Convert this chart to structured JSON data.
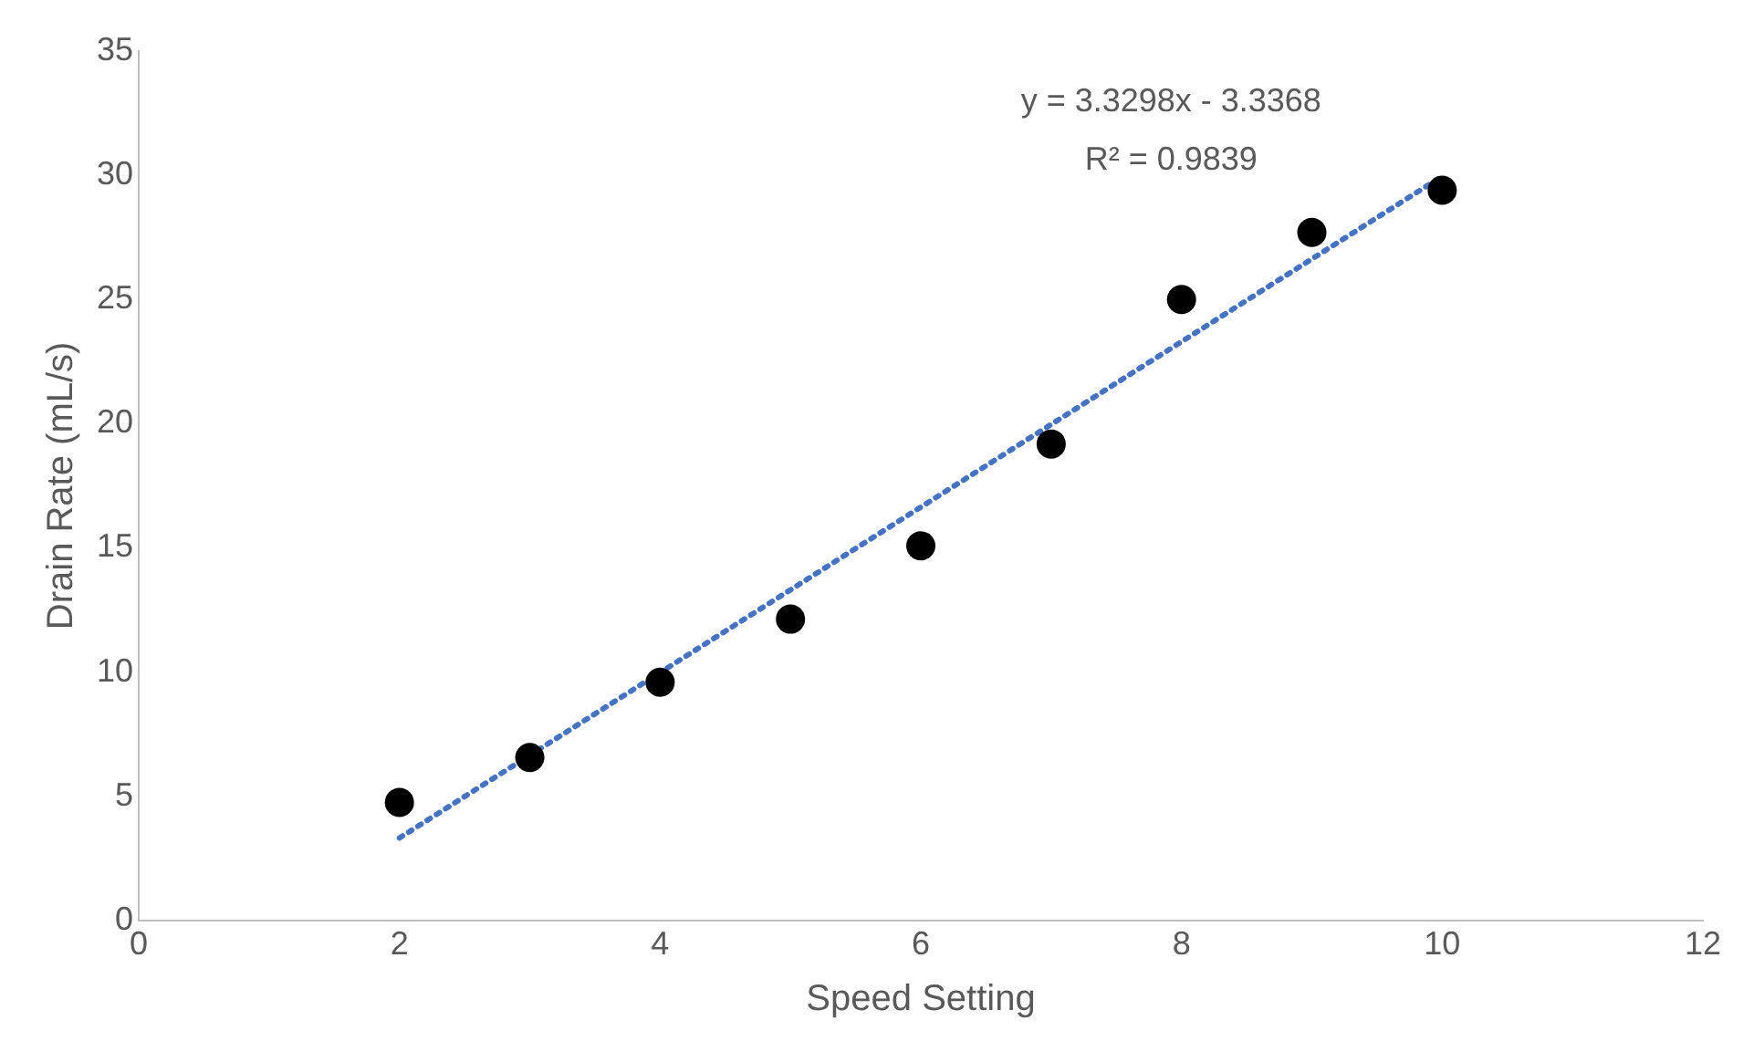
{
  "chart_data": {
    "type": "scatter",
    "xlabel": "Speed Setting",
    "ylabel": "Drain Rate (mL/s)",
    "x": [
      2,
      3,
      4,
      5,
      6,
      7,
      8,
      9,
      10
    ],
    "series": [
      {
        "color": "#000000",
        "marker": "circle",
        "values": [
          4.75,
          6.56,
          9.59,
          12.13,
          15.08,
          19.18,
          25.0,
          27.7,
          29.4
        ]
      },
      {
        "type": "line",
        "color": "#4472c4",
        "line_style": "dotted",
        "marker": "none",
        "x": [
          2,
          10
        ],
        "values": [
          3.32,
          29.96
        ]
      }
    ],
    "xlim": [
      0,
      12
    ],
    "xticks": [
      0,
      2,
      4,
      6,
      8,
      10,
      12
    ],
    "ylim": [
      0,
      35
    ],
    "yticks": [
      0,
      5,
      10,
      15,
      20,
      25,
      30,
      35
    ],
    "grid": false,
    "legend": false,
    "annotations": [
      "y = 3.3298x - 3.3368",
      "R² = 0.9839"
    ]
  }
}
